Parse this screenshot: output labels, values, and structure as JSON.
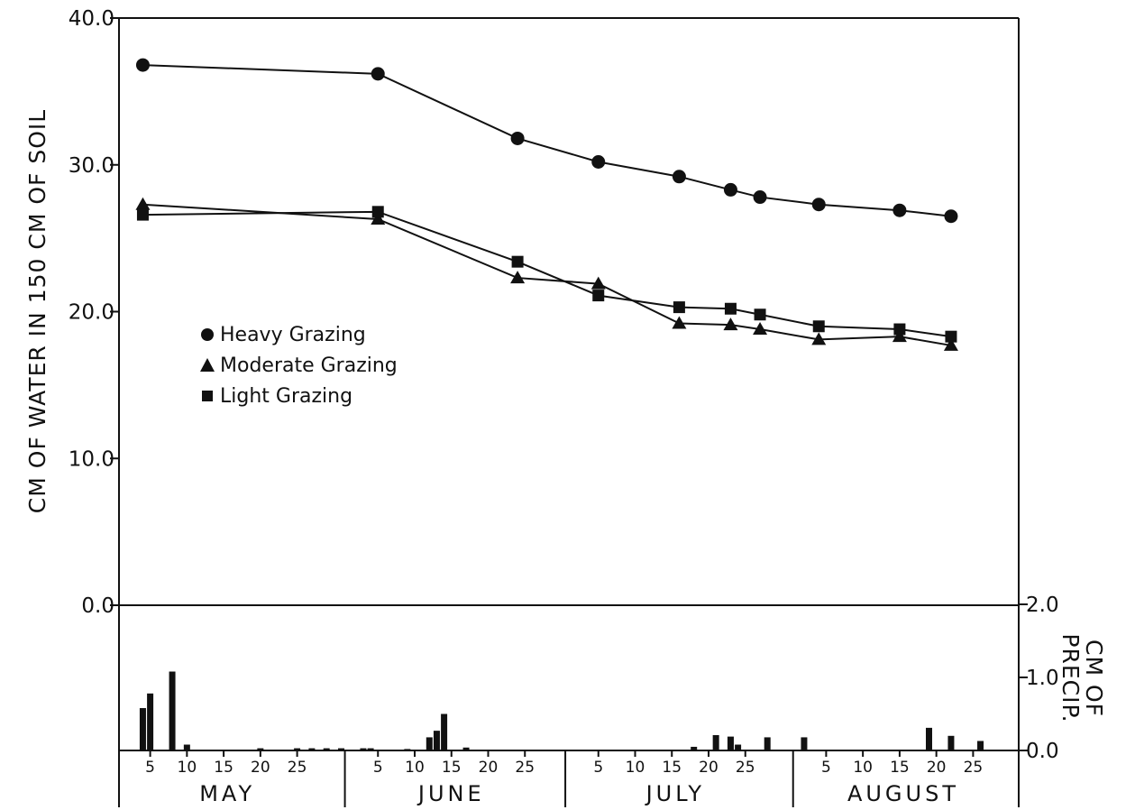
{
  "chart_data": {
    "type": "line",
    "ylabel": "CM OF WATER IN 150 CM OF SOIL",
    "ylim": [
      0,
      40
    ],
    "yticks": [
      "40.0",
      "30.0",
      "20.0",
      "10.0",
      "0.0"
    ],
    "y2label_lines": [
      "CM OF",
      "PRECIP."
    ],
    "y2lim": [
      0,
      2
    ],
    "y2ticks": [
      "2.0",
      "1.0",
      "0.0"
    ],
    "months": [
      "MAY",
      "JUNE",
      "JULY",
      "AUGUST"
    ],
    "day_ticks": [
      "5",
      "10",
      "15",
      "20",
      "25"
    ],
    "legend_position": "center-left",
    "series": [
      {
        "name": "Heavy Grazing",
        "marker": "circle",
        "points": [
          {
            "date": "May 4",
            "value": 36.8
          },
          {
            "date": "June 5",
            "value": 36.2
          },
          {
            "date": "June 24",
            "value": 31.8
          },
          {
            "date": "July 5",
            "value": 30.2
          },
          {
            "date": "July 16",
            "value": 29.2
          },
          {
            "date": "July 23",
            "value": 28.3
          },
          {
            "date": "July 27",
            "value": 27.8
          },
          {
            "date": "August 4",
            "value": 27.3
          },
          {
            "date": "August 15",
            "value": 26.9
          },
          {
            "date": "August 22",
            "value": 26.5
          }
        ]
      },
      {
        "name": "Moderate Grazing",
        "marker": "triangle",
        "points": [
          {
            "date": "May 4",
            "value": 27.3
          },
          {
            "date": "June 5",
            "value": 26.3
          },
          {
            "date": "June 24",
            "value": 22.3
          },
          {
            "date": "July 5",
            "value": 21.9
          },
          {
            "date": "July 16",
            "value": 19.2
          },
          {
            "date": "July 23",
            "value": 19.1
          },
          {
            "date": "July 27",
            "value": 18.8
          },
          {
            "date": "August 4",
            "value": 18.1
          },
          {
            "date": "August 15",
            "value": 18.3
          },
          {
            "date": "August 22",
            "value": 17.7
          }
        ]
      },
      {
        "name": "Light Grazing",
        "marker": "square",
        "points": [
          {
            "date": "May 4",
            "value": 26.6
          },
          {
            "date": "June 5",
            "value": 26.8
          },
          {
            "date": "June 24",
            "value": 23.4
          },
          {
            "date": "July 5",
            "value": 21.1
          },
          {
            "date": "July 16",
            "value": 20.3
          },
          {
            "date": "July 23",
            "value": 20.2
          },
          {
            "date": "July 27",
            "value": 19.8
          },
          {
            "date": "August 4",
            "value": 19.0
          },
          {
            "date": "August 15",
            "value": 18.8
          },
          {
            "date": "August 22",
            "value": 18.3
          }
        ]
      }
    ],
    "precipitation": [
      {
        "date": "May 4",
        "value": 0.58
      },
      {
        "date": "May 5",
        "value": 0.78
      },
      {
        "date": "May 8",
        "value": 1.08
      },
      {
        "date": "May 10",
        "value": 0.08
      },
      {
        "date": "May 20",
        "value": 0.03
      },
      {
        "date": "May 25",
        "value": 0.03
      },
      {
        "date": "May 27",
        "value": 0.03
      },
      {
        "date": "May 29",
        "value": 0.03
      },
      {
        "date": "May 31",
        "value": 0.03
      },
      {
        "date": "June 3",
        "value": 0.03
      },
      {
        "date": "June 4",
        "value": 0.03
      },
      {
        "date": "June 9",
        "value": 0.02
      },
      {
        "date": "June 12",
        "value": 0.18
      },
      {
        "date": "June 13",
        "value": 0.27
      },
      {
        "date": "June 14",
        "value": 0.5
      },
      {
        "date": "June 17",
        "value": 0.04
      },
      {
        "date": "July 18",
        "value": 0.05
      },
      {
        "date": "July 21",
        "value": 0.21
      },
      {
        "date": "July 23",
        "value": 0.19
      },
      {
        "date": "July 24",
        "value": 0.08
      },
      {
        "date": "July 28",
        "value": 0.18
      },
      {
        "date": "August 2",
        "value": 0.18
      },
      {
        "date": "August 19",
        "value": 0.31
      },
      {
        "date": "August 22",
        "value": 0.2
      },
      {
        "date": "August 26",
        "value": 0.13
      }
    ]
  }
}
